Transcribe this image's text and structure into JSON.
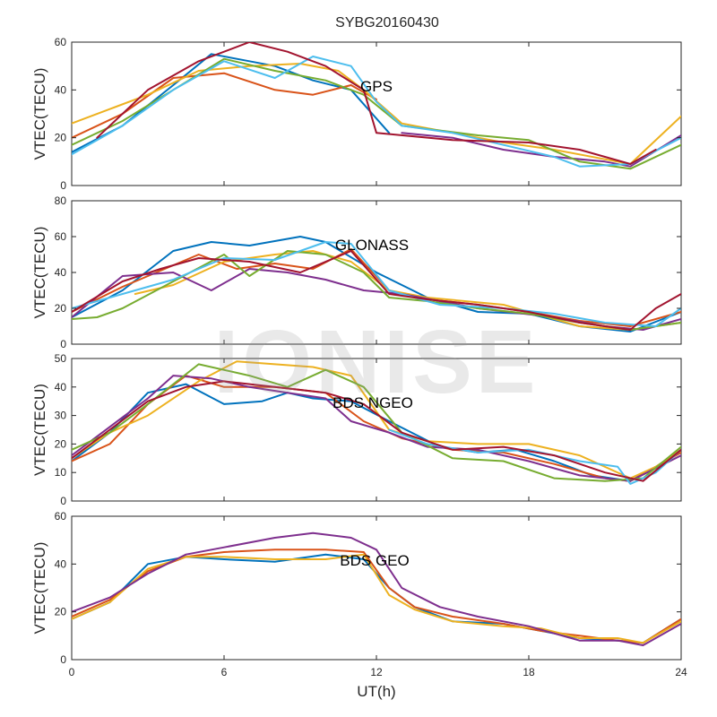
{
  "chart_data": {
    "type": "line",
    "title": "SYBG20160430",
    "xlabel": "UT(h)",
    "xlim": [
      0,
      24
    ],
    "x_ticks": [
      0,
      6,
      12,
      18,
      24
    ],
    "watermark": "IONISE",
    "colors": [
      "#0072bd",
      "#d95319",
      "#edb120",
      "#7e2f8e",
      "#77ac30",
      "#4dbeee",
      "#a2142f"
    ],
    "panels": [
      {
        "label": "GPS",
        "ylabel": "VTEC(TECU)",
        "ylim": [
          0,
          60
        ],
        "y_ticks": [
          0,
          20,
          40,
          60
        ],
        "series": [
          {
            "x": [
              0,
              2,
              4,
              5.5,
              7,
              8,
              9.5,
              11,
              12.5
            ],
            "y": [
              14,
              25,
              42,
              55,
              52,
              50,
              44,
              40,
              22
            ]
          },
          {
            "x": [
              0,
              2,
              4,
              6,
              8,
              9.5,
              11,
              12
            ],
            "y": [
              20,
              30,
              45,
              47,
              40,
              38,
              42,
              36
            ]
          },
          {
            "x": [
              0,
              1.5,
              3,
              5,
              7,
              9,
              10.5,
              11.5,
              13,
              15,
              17,
              19,
              21,
              22,
              24
            ],
            "y": [
              26,
              32,
              38,
              48,
              50,
              51,
              48,
              40,
              26,
              22,
              18,
              15,
              11,
              9,
              29
            ]
          },
          {
            "x": [
              13,
              15,
              17,
              19,
              21,
              22,
              24
            ],
            "y": [
              22,
              20,
              15,
              12,
              10,
              8,
              21
            ]
          },
          {
            "x": [
              0,
              2,
              4,
              6,
              8,
              10,
              11.5,
              13,
              16,
              18,
              20,
              22,
              24
            ],
            "y": [
              17,
              27,
              40,
              53,
              48,
              44,
              38,
              25,
              21,
              19,
              10,
              7,
              17
            ]
          },
          {
            "x": [
              0,
              2,
              4,
              6,
              8,
              9.5,
              11,
              12,
              13,
              15,
              17,
              19,
              20,
              22,
              24
            ],
            "y": [
              13,
              25,
              40,
              52,
              45,
              54,
              50,
              35,
              25,
              22,
              17,
              12,
              8,
              9,
              20
            ]
          },
          {
            "x": [
              1,
              3,
              5,
              7,
              8.5,
              10,
              11.5,
              12,
              15,
              18,
              20,
              22,
              23
            ],
            "y": [
              20,
              40,
              52,
              60,
              56,
              50,
              40,
              22,
              19,
              18,
              15,
              9,
              15
            ]
          }
        ]
      },
      {
        "label": "GLONASS",
        "ylabel": "VTEC(TECU)",
        "ylim": [
          0,
          80
        ],
        "y_ticks": [
          0,
          20,
          40,
          60,
          80
        ],
        "series": [
          {
            "x": [
              0,
              2,
              4,
              5.5,
              7,
              9,
              10,
              12,
              14,
              16,
              18,
              20,
              22,
              24
            ],
            "y": [
              15,
              30,
              52,
              57,
              55,
              60,
              57,
              40,
              26,
              18,
              17,
              10,
              7,
              18
            ]
          },
          {
            "x": [
              0,
              2,
              4,
              5,
              6.5,
              8,
              9.5,
              11,
              12.5,
              14,
              16,
              18,
              20,
              22,
              24
            ],
            "y": [
              18,
              32,
              44,
              50,
              42,
              45,
              42,
              53,
              30,
              25,
              22,
              18,
              13,
              10,
              18
            ]
          },
          {
            "x": [
              2.5,
              4,
              6,
              8,
              9.5,
              11,
              12.5,
              14,
              17,
              20,
              22,
              24
            ],
            "y": [
              28,
              33,
              46,
              50,
              52,
              46,
              30,
              26,
              22,
              10,
              8,
              12
            ]
          },
          {
            "x": [
              0,
              2,
              4,
              5.5,
              7,
              8.5,
              10,
              11.5,
              13,
              16,
              19,
              21,
              22.5,
              24
            ],
            "y": [
              15,
              38,
              40,
              30,
              42,
              40,
              36,
              30,
              28,
              20,
              15,
              10,
              8,
              14
            ]
          },
          {
            "x": [
              0,
              1,
              2,
              4,
              6,
              7,
              8.5,
              10,
              11.5,
              12.5,
              14,
              16,
              18,
              20,
              22,
              24
            ],
            "y": [
              14,
              15,
              20,
              35,
              50,
              38,
              52,
              50,
              40,
              26,
              24,
              20,
              17,
              12,
              8,
              12
            ]
          },
          {
            "x": [
              0,
              2,
              4,
              6,
              8,
              10,
              11,
              12.5,
              14.5,
              17,
              19,
              21,
              23,
              24
            ],
            "y": [
              20,
              28,
              36,
              48,
              47,
              57,
              56,
              30,
              22,
              20,
              17,
              12,
              10,
              20
            ]
          },
          {
            "x": [
              0,
              2,
              3.5,
              5,
              7,
              9,
              11,
              12.5,
              14,
              16,
              18,
              20,
              22,
              23,
              24
            ],
            "y": [
              18,
              35,
              42,
              48,
              46,
              40,
              52,
              28,
              25,
              22,
              18,
              12,
              8,
              20,
              28
            ]
          }
        ]
      },
      {
        "label": "BDS NGEO",
        "ylabel": "VTEC(TECU)",
        "ylim": [
          0,
          50
        ],
        "y_ticks": [
          0,
          10,
          20,
          30,
          40,
          50
        ],
        "series": [
          {
            "x": [
              0,
              1.5,
              3,
              4.5,
              6,
              7.5,
              8.5,
              9.5,
              11,
              12.5,
              14.5,
              16,
              17.5,
              19,
              20.5,
              22,
              23,
              24
            ],
            "y": [
              14,
              24,
              38,
              41,
              34,
              35,
              38,
              36,
              35,
              28,
              19,
              17,
              18,
              14,
              9,
              7,
              12,
              18
            ]
          },
          {
            "x": [
              0,
              1.5,
              3,
              4.5,
              6,
              8,
              10,
              11.5,
              13,
              15,
              17,
              19,
              21,
              22,
              24
            ],
            "y": [
              14,
              20,
              34,
              44,
              40,
              40,
              38,
              28,
              22,
              18,
              17,
              13,
              8,
              7,
              17
            ]
          },
          {
            "x": [
              0,
              1.5,
              3,
              5,
              6.5,
              8,
              9.5,
              11,
              12.5,
              14,
              16,
              18,
              20,
              22,
              23,
              24
            ],
            "y": [
              15,
              24,
              30,
              42,
              49,
              48,
              47,
              44,
              25,
              21,
              20,
              20,
              16,
              8,
              12,
              18
            ]
          },
          {
            "x": [
              0,
              1.5,
              3,
              4,
              5.5,
              7,
              8.5,
              10,
              11,
              12.5,
              14,
              16,
              18,
              20,
              22,
              24
            ],
            "y": [
              16,
              26,
              36,
              44,
              43,
              40,
              38,
              36,
              28,
              24,
              19,
              18,
              14,
              9,
              7,
              16
            ]
          },
          {
            "x": [
              0,
              1.5,
              3,
              5,
              7,
              8.5,
              10,
              11.5,
              13,
              15,
              17,
              19,
              21,
              22.5,
              24
            ],
            "y": [
              18,
              24,
              34,
              48,
              44,
              40,
              46,
              40,
              24,
              15,
              14,
              8,
              7,
              8,
              19
            ]
          },
          {
            "x": [
              12.5,
              14,
              16,
              18,
              20,
              21.5,
              22,
              23,
              24
            ],
            "y": [
              25,
              20,
              17,
              18,
              14,
              12,
              6,
              10,
              18
            ]
          },
          {
            "x": [
              0,
              1.5,
              3,
              4.5,
              6,
              8,
              10,
              11.5,
              13,
              15,
              17,
              19,
              21,
              22.5,
              24
            ],
            "y": [
              15,
              25,
              35,
              40,
              42,
              40,
              38,
              34,
              24,
              18,
              19,
              16,
              10,
              7,
              18
            ]
          }
        ]
      },
      {
        "label": "BDS GEO",
        "ylabel": "VTEC(TECU)",
        "ylim": [
          0,
          60
        ],
        "y_ticks": [
          0,
          20,
          40,
          60
        ],
        "series": [
          {
            "x": [
              0,
              1.5,
              3,
              4.5,
              6,
              8,
              10,
              11.5,
              12.5,
              13.5,
              15,
              17,
              18.5,
              20,
              21.5,
              22.5,
              24
            ],
            "y": [
              17,
              24,
              40,
              43,
              42,
              41,
              44,
              42,
              30,
              22,
              16,
              15,
              12,
              9,
              8,
              7,
              17
            ]
          },
          {
            "x": [
              0,
              1.5,
              3,
              4.5,
              6,
              8,
              10,
              11.5,
              12.5,
              13.5,
              15,
              17,
              18.5,
              20,
              21.5,
              22.5,
              24
            ],
            "y": [
              18,
              25,
              37,
              43,
              45,
              46,
              46,
              45,
              30,
              22,
              18,
              15,
              12,
              10,
              8,
              7,
              17
            ]
          },
          {
            "x": [
              0,
              1.5,
              3,
              4.5,
              6,
              8,
              10,
              11.5,
              12.5,
              13.5,
              15,
              17,
              18.5,
              20,
              21.5,
              22.5,
              24
            ],
            "y": [
              17,
              24,
              38,
              43,
              43,
              42,
              42,
              44,
              27,
              21,
              16,
              14,
              13,
              9,
              9,
              7,
              16
            ]
          },
          {
            "x": [
              0,
              1.5,
              3,
              4.5,
              6,
              8,
              9.5,
              11,
              12,
              13,
              14.5,
              16,
              18,
              20,
              21.5,
              22.5,
              24
            ],
            "y": [
              20,
              26,
              36,
              44,
              47,
              51,
              53,
              51,
              46,
              30,
              22,
              18,
              14,
              8,
              8,
              6,
              15
            ]
          }
        ]
      }
    ]
  }
}
